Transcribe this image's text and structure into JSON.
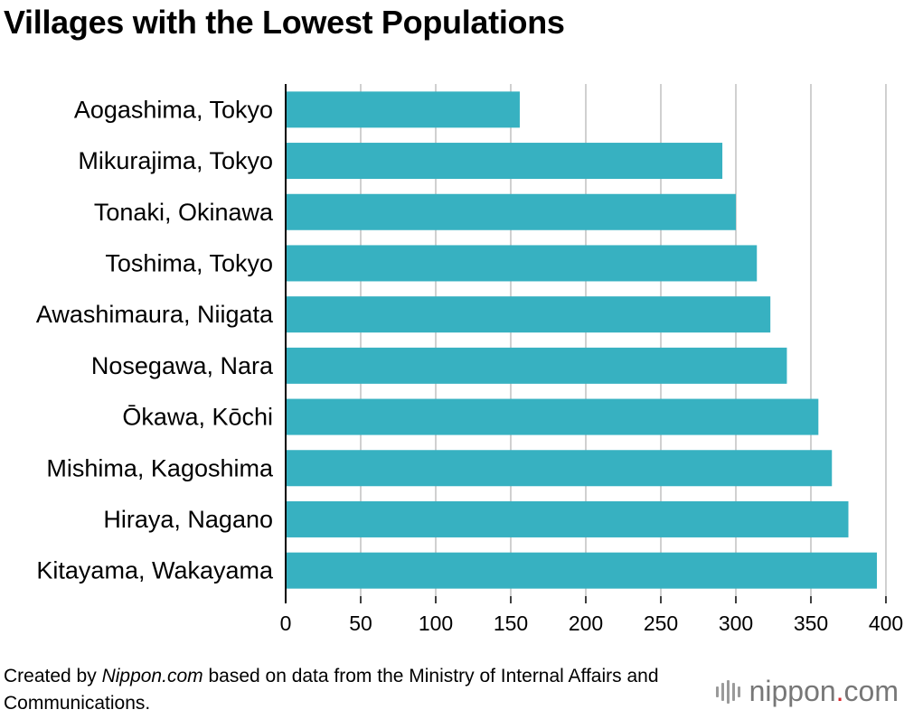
{
  "title": "Villages with the Lowest Populations",
  "caption": {
    "prefix": "Created by ",
    "source_name": "Nippon.com",
    "suffix": " based on data from the Ministry of Internal Affairs and Communications."
  },
  "logo": {
    "name": "nippon",
    "dot": ".",
    "tld": "com"
  },
  "colors": {
    "bar": "#37b1c1",
    "grid": "#d0d0d0",
    "axis": "#000000"
  },
  "chart_data": {
    "type": "bar",
    "orientation": "horizontal",
    "categories": [
      "Aogashima, Tokyo",
      "Mikurajima, Tokyo",
      "Tonaki, Okinawa",
      "Toshima, Tokyo",
      "Awashimaura, Niigata",
      "Nosegawa, Nara",
      "Ōkawa, Kōchi",
      "Mishima, Kagoshima",
      "Hiraya, Nagano",
      "Kitayama, Wakayama"
    ],
    "values": [
      156,
      291,
      300,
      314,
      323,
      334,
      355,
      364,
      375,
      394
    ],
    "xlim": [
      0,
      400
    ],
    "xticks": [
      0,
      50,
      100,
      150,
      200,
      250,
      300,
      350,
      400
    ],
    "grid": true
  }
}
